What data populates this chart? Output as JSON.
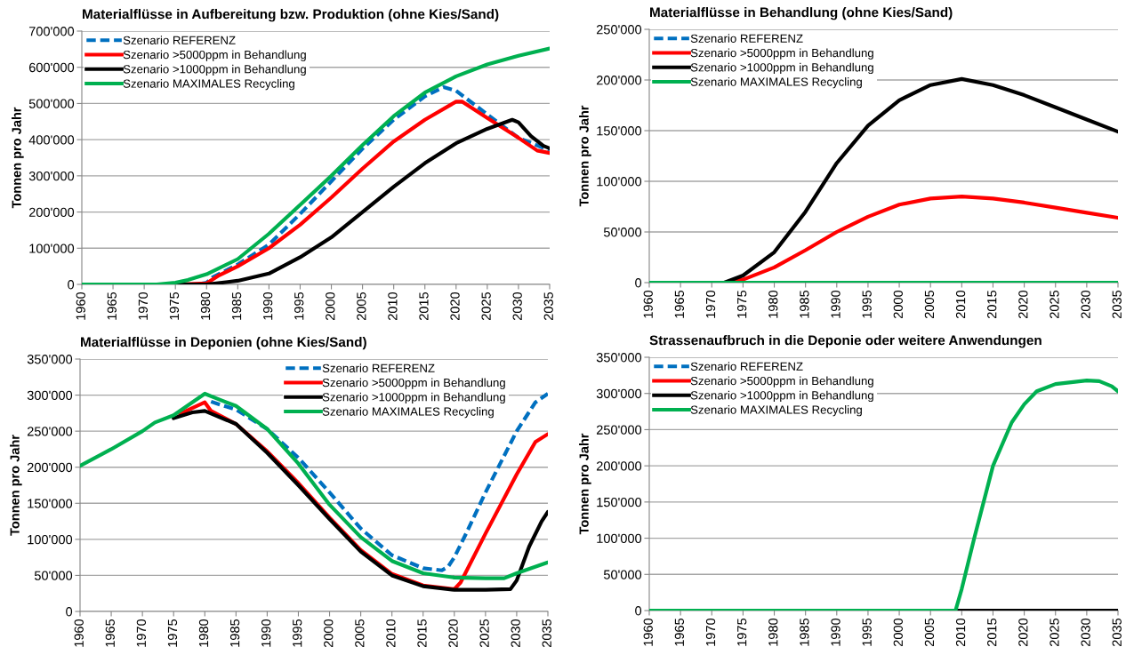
{
  "chart_data": [
    {
      "type": "line",
      "title": "Materialflüsse in Aufbereitung bzw. Produktion (ohne Kies/Sand)",
      "ylabel": "Tonnen pro Jahr",
      "xlim": [
        1960,
        2035
      ],
      "xticks": [
        1960,
        1965,
        1970,
        1975,
        1980,
        1985,
        1990,
        1995,
        2000,
        2005,
        2010,
        2015,
        2020,
        2025,
        2030,
        2035
      ],
      "ylim": [
        0,
        700000
      ],
      "yticks": [
        {
          "value": 0,
          "label": "0"
        },
        {
          "value": 100000,
          "label": "100'000"
        },
        {
          "value": 200000,
          "label": "200'000"
        },
        {
          "value": 300000,
          "label": "300'000"
        },
        {
          "value": 400000,
          "label": "400'000"
        },
        {
          "value": 500000,
          "label": "500'000"
        },
        {
          "value": 600000,
          "label": "600'000"
        },
        {
          "value": 700000,
          "label": "700'000"
        }
      ],
      "grid": "y",
      "legend": "top left",
      "series": [
        {
          "name": "Szenario REFERENZ",
          "color": "#0070c0",
          "line_style": "dashed",
          "x": [
            1979,
            1980,
            1981,
            1985,
            1990,
            1995,
            2000,
            2005,
            2010,
            2015,
            2018,
            2020,
            2025,
            2030,
            2035
          ],
          "values": [
            2000,
            5000,
            20000,
            55000,
            110000,
            195000,
            285000,
            375000,
            455000,
            520000,
            545000,
            535000,
            470000,
            405000,
            370000
          ]
        },
        {
          "name": "Szenario >5000ppm in Behandlung",
          "color": "#ff0000",
          "line_style": "solid",
          "x": [
            1960,
            1975,
            1980,
            1982,
            1985,
            1990,
            1995,
            2000,
            2005,
            2010,
            2015,
            2020,
            2021,
            2025,
            2030,
            2033,
            2035
          ],
          "values": [
            0,
            0,
            3000,
            25000,
            50000,
            100000,
            165000,
            240000,
            320000,
            395000,
            455000,
            505000,
            505000,
            460000,
            405000,
            370000,
            363000
          ]
        },
        {
          "name": "Szenario >1000ppm in Behandlung",
          "color": "#000000",
          "line_style": "solid",
          "x": [
            1960,
            1980,
            1985,
            1990,
            1995,
            2000,
            2005,
            2010,
            2015,
            2020,
            2025,
            2029,
            2030,
            2032,
            2034,
            2035
          ],
          "values": [
            0,
            0,
            10000,
            30000,
            75000,
            130000,
            200000,
            270000,
            335000,
            390000,
            430000,
            455000,
            448000,
            410000,
            383000,
            376000
          ]
        },
        {
          "name": "Szenario MAXIMALES Recycling",
          "color": "#00b050",
          "line_style": "solid",
          "x": [
            1960,
            1972,
            1975,
            1977,
            1980,
            1985,
            1990,
            1995,
            2000,
            2005,
            2010,
            2015,
            2020,
            2025,
            2030,
            2035
          ],
          "values": [
            0,
            0,
            5000,
            12000,
            28000,
            70000,
            140000,
            220000,
            300000,
            385000,
            465000,
            530000,
            575000,
            608000,
            632000,
            652000
          ]
        }
      ]
    },
    {
      "type": "line",
      "title": "Materialflüsse in Behandlung (ohne Kies/Sand)",
      "ylabel": "Tonnen pro Jahr",
      "xlim": [
        1960,
        2035
      ],
      "xticks": [
        1960,
        1965,
        1970,
        1975,
        1980,
        1985,
        1990,
        1995,
        2000,
        2005,
        2010,
        2015,
        2020,
        2025,
        2030,
        2035
      ],
      "ylim": [
        0,
        250000
      ],
      "yticks": [
        {
          "value": 0,
          "label": "0"
        },
        {
          "value": 50000,
          "label": "50'000"
        },
        {
          "value": 100000,
          "label": "100'000"
        },
        {
          "value": 150000,
          "label": "150'000"
        },
        {
          "value": 200000,
          "label": "200'000"
        },
        {
          "value": 250000,
          "label": "250'000"
        }
      ],
      "grid": "y",
      "legend": "top left",
      "series": [
        {
          "name": "Szenario REFERENZ",
          "color": "#0070c0",
          "line_style": "dashed"
        },
        {
          "name": "Szenario >5000ppm in Behandlung",
          "color": "#ff0000",
          "line_style": "solid",
          "x": [
            1972,
            1975,
            1980,
            1985,
            1990,
            1995,
            2000,
            2005,
            2010,
            2015,
            2020,
            2025,
            2030,
            2035
          ],
          "values": [
            0,
            3000,
            15000,
            32000,
            50000,
            65000,
            77000,
            83000,
            85000,
            83000,
            79000,
            74000,
            69000,
            64000
          ]
        },
        {
          "name": "Szenario >1000ppm in Behandlung",
          "color": "#000000",
          "line_style": "solid",
          "x": [
            1972,
            1975,
            1980,
            1985,
            1990,
            1995,
            2000,
            2005,
            2010,
            2015,
            2020,
            2025,
            2030,
            2035
          ],
          "values": [
            0,
            7000,
            30000,
            70000,
            118000,
            155000,
            180000,
            195000,
            201000,
            195000,
            185000,
            173000,
            161000,
            149000
          ]
        },
        {
          "name": "Szenario MAXIMALES Recycling",
          "color": "#00b050",
          "line_style": "solid",
          "x": [
            1960,
            2035
          ],
          "values": [
            0,
            0
          ]
        }
      ]
    },
    {
      "type": "line",
      "title": "Materialflüsse in Deponien (ohne Kies/Sand)",
      "ylabel": "Tonnen pro Jahr",
      "xlim": [
        1960,
        2035
      ],
      "xticks": [
        1960,
        1965,
        1970,
        1975,
        1980,
        1985,
        1990,
        1995,
        2000,
        2005,
        2010,
        2015,
        2020,
        2025,
        2030,
        2035
      ],
      "ylim": [
        0,
        350000
      ],
      "yticks": [
        {
          "value": 0,
          "label": "0"
        },
        {
          "value": 50000,
          "label": "50'000"
        },
        {
          "value": 100000,
          "label": "100'000"
        },
        {
          "value": 150000,
          "label": "150'000"
        },
        {
          "value": 200000,
          "label": "200'000"
        },
        {
          "value": 250000,
          "label": "250'000"
        },
        {
          "value": 300000,
          "label": "300'000"
        },
        {
          "value": 350000,
          "label": "350'000"
        }
      ],
      "grid": "y",
      "legend": "top right",
      "series": [
        {
          "name": "Szenario REFERENZ",
          "color": "#0070c0",
          "line_style": "dashed",
          "x": [
            1981,
            1982,
            1985,
            1990,
            1995,
            2000,
            2005,
            2010,
            2015,
            2018,
            2019,
            2020,
            2022,
            2025,
            2030,
            2033,
            2035
          ],
          "values": [
            291000,
            288000,
            280000,
            253000,
            213000,
            165000,
            115000,
            78000,
            60000,
            57000,
            62000,
            75000,
            110000,
            165000,
            250000,
            290000,
            302000
          ]
        },
        {
          "name": "Szenario >5000ppm in Behandlung",
          "color": "#ff0000",
          "line_style": "solid",
          "x": [
            1976,
            1980,
            1981,
            1985,
            1990,
            1995,
            2000,
            2005,
            2010,
            2015,
            2020,
            2021,
            2025,
            2030,
            2033,
            2035
          ],
          "values": [
            274000,
            290000,
            278000,
            260000,
            222000,
            178000,
            130000,
            85000,
            52000,
            36000,
            31000,
            40000,
            108000,
            190000,
            235000,
            246000
          ]
        },
        {
          "name": "Szenario >1000ppm in Behandlung",
          "color": "#000000",
          "line_style": "solid",
          "x": [
            1975,
            1978,
            1980,
            1985,
            1990,
            1995,
            2000,
            2005,
            2010,
            2015,
            2020,
            2025,
            2029,
            2030,
            2032,
            2034,
            2035
          ],
          "values": [
            268000,
            276000,
            278000,
            260000,
            220000,
            175000,
            128000,
            83000,
            50000,
            35000,
            30000,
            30000,
            31000,
            43000,
            90000,
            125000,
            138000
          ]
        },
        {
          "name": "Szenario MAXIMALES Recycling",
          "color": "#00b050",
          "line_style": "solid",
          "x": [
            1960,
            1965,
            1970,
            1972,
            1975,
            1980,
            1982,
            1985,
            1990,
            1995,
            2000,
            2005,
            2010,
            2015,
            2020,
            2025,
            2028,
            2030,
            2035
          ],
          "values": [
            202000,
            225000,
            250000,
            262000,
            272000,
            302000,
            295000,
            285000,
            253000,
            205000,
            148000,
            103000,
            70000,
            53000,
            47000,
            46000,
            46000,
            53000,
            68000
          ]
        }
      ]
    },
    {
      "type": "line",
      "title": "Strassenaufbruch in die Deponie oder weitere Anwendungen",
      "ylabel": "Tonnen pro Jahr",
      "xlim": [
        1960,
        2035
      ],
      "xticks": [
        1960,
        1965,
        1970,
        1975,
        1980,
        1985,
        1990,
        1995,
        2000,
        2005,
        2010,
        2015,
        2020,
        2025,
        2030,
        2035
      ],
      "ylim": [
        0,
        350000
      ],
      "yticks": [
        {
          "value": 0,
          "label": "0"
        },
        {
          "value": 50000,
          "label": "50'000"
        },
        {
          "value": 100000,
          "label": "100'000"
        },
        {
          "value": 150000,
          "label": "150'000"
        },
        {
          "value": 200000,
          "label": "200'000"
        },
        {
          "value": 250000,
          "label": "250'000"
        },
        {
          "value": 300000,
          "label": "300'000"
        },
        {
          "value": 350000,
          "label": "350'000"
        }
      ],
      "grid": "y",
      "legend": "top left",
      "series": [
        {
          "name": "Szenario REFERENZ",
          "color": "#0070c0",
          "line_style": "dashed"
        },
        {
          "name": "Szenario >5000ppm in Behandlung",
          "color": "#ff0000",
          "line_style": "solid"
        },
        {
          "name": "Szenario >1000ppm in Behandlung",
          "color": "#000000",
          "line_style": "solid",
          "x": [
            1960,
            2035
          ],
          "values": [
            0,
            0
          ]
        },
        {
          "name": "Szenario MAXIMALES Recycling",
          "color": "#00b050",
          "line_style": "solid",
          "x": [
            1960,
            2009,
            2010,
            2012,
            2015,
            2018,
            2020,
            2022,
            2025,
            2030,
            2032,
            2034,
            2035
          ],
          "values": [
            0,
            0,
            30000,
            100000,
            200000,
            260000,
            285000,
            303000,
            313000,
            318000,
            317000,
            310000,
            303000
          ]
        }
      ]
    }
  ]
}
